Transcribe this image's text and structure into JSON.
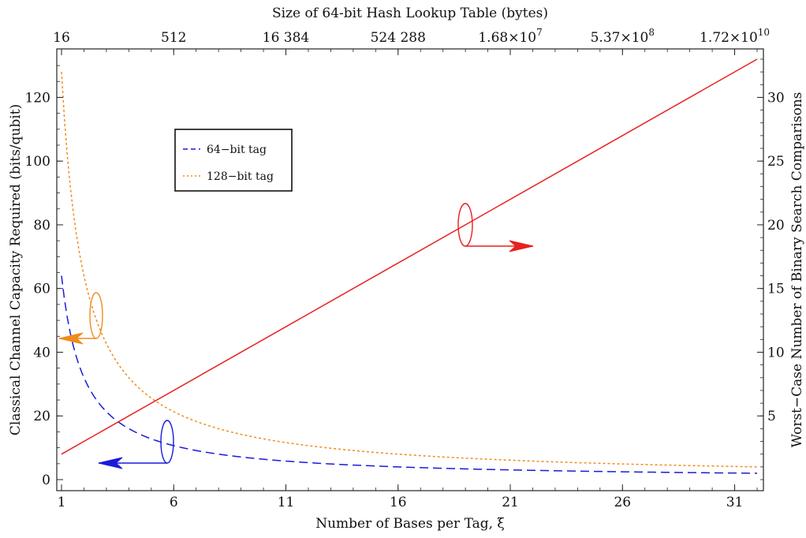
{
  "chart_data": {
    "type": "line",
    "title": "",
    "xlabel": "Number of Bases per Tag, ξ",
    "ylabel_left": "Classical Channel Capacity Required (bits/qubit)",
    "ylabel_right": "Worst−Case Number of Binary Search Comparisons",
    "xlabel_top": "Size of 64-bit Hash Lookup Table (bytes)",
    "xlim": [
      1,
      32
    ],
    "ylim_left": [
      0,
      132
    ],
    "ylim_right": [
      0,
      33
    ],
    "x_ticks": [
      "1",
      "6",
      "11",
      "16",
      "21",
      "26",
      "31"
    ],
    "y_left_ticks": [
      "0",
      "20",
      "40",
      "60",
      "80",
      "100",
      "120"
    ],
    "y_right_ticks": [
      "5",
      "10",
      "15",
      "20",
      "25",
      "30"
    ],
    "x_top_ticks": [
      "16",
      "512",
      "16 384",
      "524 288",
      "1.68×10",
      "5.37×10",
      "1.72×10"
    ],
    "x_top_tick_exponents": [
      "",
      "",
      "",
      "",
      "7",
      "8",
      "10"
    ],
    "grid": false,
    "legend_position": "upper-left inset",
    "series": [
      {
        "name": "64−bit tag",
        "axis": "left",
        "color": "#1a1adb",
        "style": "dashed",
        "x": [
          1,
          2,
          3,
          4,
          5,
          6,
          8,
          10,
          12,
          16,
          20,
          24,
          28,
          32
        ],
        "y": [
          64,
          32,
          21.33,
          16,
          12.8,
          10.67,
          8,
          6.4,
          5.33,
          4,
          3.2,
          2.67,
          2.29,
          2
        ]
      },
      {
        "name": "128−bit tag",
        "axis": "left",
        "color": "#f08c1c",
        "style": "dotted",
        "x": [
          1,
          2,
          3,
          4,
          5,
          6,
          8,
          10,
          12,
          16,
          20,
          24,
          28,
          32
        ],
        "y": [
          128,
          64,
          42.67,
          32,
          25.6,
          21.33,
          16,
          12.8,
          10.67,
          8,
          6.4,
          5.33,
          4.57,
          4
        ]
      },
      {
        "axis": "right",
        "color": "#e8201e",
        "style": "solid",
        "x": [
          1,
          32
        ],
        "y": [
          2,
          33
        ]
      }
    ]
  }
}
